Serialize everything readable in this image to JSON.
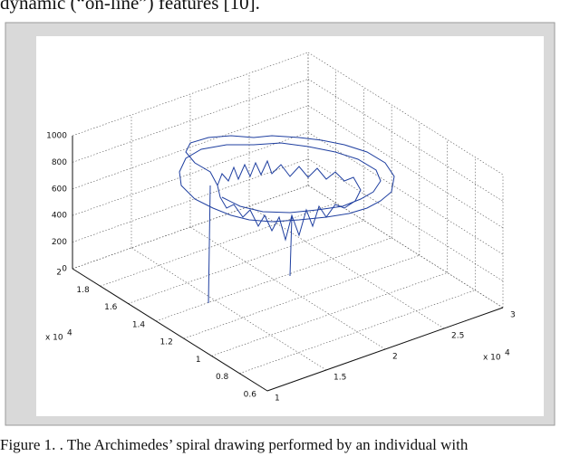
{
  "header_text": "dynamic (“on-line”) features [10].",
  "figure": {
    "xlim": [
      1,
      3
    ],
    "xticks": [
      1,
      1.5,
      2,
      2.5,
      3
    ],
    "ylim": [
      0.6,
      2
    ],
    "yticks": [
      0.6,
      0.8,
      1,
      1.2,
      1.4,
      1.6,
      1.8,
      2
    ],
    "zlim": [
      0,
      1000
    ],
    "zticks": [
      0,
      200,
      400,
      600,
      800,
      1000
    ],
    "exponent_base": "x 10",
    "exponent": "4",
    "grid": true,
    "line_color": "#1f3fa0"
  },
  "caption": "Figure 1. . The Archimedes’ spiral drawing performed by an individual with"
}
